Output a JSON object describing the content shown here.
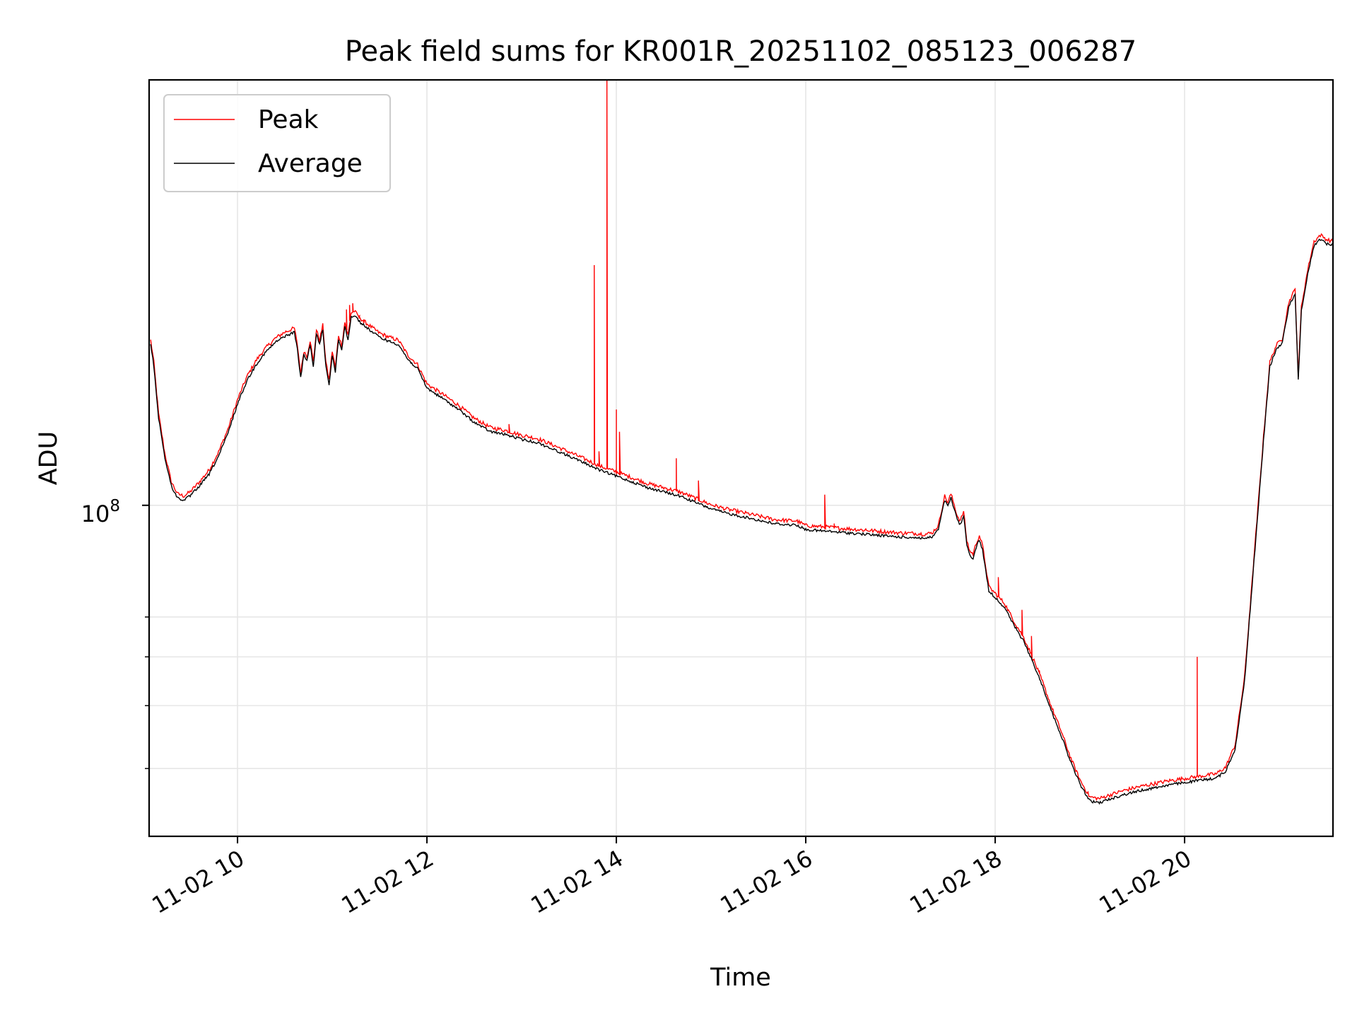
{
  "chart_data": {
    "type": "line",
    "title": "Peak field sums for KR001R_20251102_085123_006287",
    "xlabel": "Time",
    "ylabel": "ADU",
    "yscale": "log",
    "grid": true,
    "legend_position": "top-left",
    "xlim": [
      "2025-11-02 09:04",
      "2025-11-02 21:34"
    ],
    "ylim": [
      22000000,
      700000000
    ],
    "x_ticks": [
      "11-02 10",
      "11-02 12",
      "11-02 14",
      "11-02 16",
      "11-02 18",
      "11-02 20"
    ],
    "y_tick_label": {
      "base": "10",
      "exp": "8"
    },
    "colors": {
      "peak": "#ff0000",
      "average": "#000000",
      "grid": "#e6e6e6"
    },
    "series": [
      {
        "name": "Average",
        "color": "#000000",
        "points": [
          [
            "09:05",
            210000000
          ],
          [
            "09:07",
            190000000
          ],
          [
            "09:10",
            150000000
          ],
          [
            "09:14",
            125000000
          ],
          [
            "09:18",
            110000000
          ],
          [
            "09:22",
            104000000
          ],
          [
            "09:26",
            103000000
          ],
          [
            "09:30",
            105000000
          ],
          [
            "09:36",
            110000000
          ],
          [
            "09:42",
            116000000
          ],
          [
            "09:48",
            126000000
          ],
          [
            "09:54",
            140000000
          ],
          [
            "10:00",
            160000000
          ],
          [
            "10:06",
            178000000
          ],
          [
            "10:12",
            192000000
          ],
          [
            "10:18",
            203000000
          ],
          [
            "10:24",
            212000000
          ],
          [
            "10:30",
            218000000
          ],
          [
            "10:36",
            222000000
          ],
          [
            "10:38",
            205000000
          ],
          [
            "10:40",
            180000000
          ],
          [
            "10:42",
            200000000
          ],
          [
            "10:44",
            195000000
          ],
          [
            "10:46",
            210000000
          ],
          [
            "10:48",
            190000000
          ],
          [
            "10:50",
            220000000
          ],
          [
            "10:52",
            210000000
          ],
          [
            "10:54",
            225000000
          ],
          [
            "10:56",
            190000000
          ],
          [
            "10:58",
            175000000
          ],
          [
            "11:00",
            200000000
          ],
          [
            "11:02",
            185000000
          ],
          [
            "11:04",
            215000000
          ],
          [
            "11:06",
            205000000
          ],
          [
            "11:08",
            228000000
          ],
          [
            "11:10",
            215000000
          ],
          [
            "11:12",
            238000000
          ],
          [
            "11:14",
            240000000
          ],
          [
            "11:18",
            232000000
          ],
          [
            "11:24",
            224000000
          ],
          [
            "11:30",
            217000000
          ],
          [
            "11:36",
            213000000
          ],
          [
            "11:42",
            210000000
          ],
          [
            "11:48",
            196000000
          ],
          [
            "11:54",
            188000000
          ],
          [
            "12:00",
            172000000
          ],
          [
            "12:10",
            164000000
          ],
          [
            "12:20",
            156000000
          ],
          [
            "12:30",
            147000000
          ],
          [
            "12:40",
            141000000
          ],
          [
            "12:50",
            139000000
          ],
          [
            "13:00",
            136000000
          ],
          [
            "13:10",
            134000000
          ],
          [
            "13:20",
            130000000
          ],
          [
            "13:30",
            126000000
          ],
          [
            "13:40",
            122000000
          ],
          [
            "13:50",
            118000000
          ],
          [
            "14:00",
            115000000
          ],
          [
            "14:10",
            112000000
          ],
          [
            "14:20",
            109000000
          ],
          [
            "14:30",
            107000000
          ],
          [
            "14:40",
            105000000
          ],
          [
            "14:50",
            102000000
          ],
          [
            "15:00",
            99000000
          ],
          [
            "15:10",
            97000000
          ],
          [
            "15:20",
            95500000
          ],
          [
            "15:30",
            94000000
          ],
          [
            "15:40",
            92500000
          ],
          [
            "15:50",
            92000000
          ],
          [
            "15:54",
            92000000
          ],
          [
            "16:00",
            90000000
          ],
          [
            "16:10",
            89500000
          ],
          [
            "16:20",
            89000000
          ],
          [
            "16:30",
            88500000
          ],
          [
            "16:40",
            88000000
          ],
          [
            "16:50",
            87500000
          ],
          [
            "17:00",
            87000000
          ],
          [
            "17:10",
            86800000
          ],
          [
            "17:16",
            86500000
          ],
          [
            "17:20",
            87000000
          ],
          [
            "17:24",
            90000000
          ],
          [
            "17:28",
            103000000
          ],
          [
            "17:30",
            100000000
          ],
          [
            "17:32",
            104000000
          ],
          [
            "17:34",
            99000000
          ],
          [
            "17:36",
            94000000
          ],
          [
            "17:38",
            92000000
          ],
          [
            "17:40",
            96000000
          ],
          [
            "17:42",
            84000000
          ],
          [
            "17:44",
            80000000
          ],
          [
            "17:46",
            79000000
          ],
          [
            "17:48",
            83000000
          ],
          [
            "17:50",
            86000000
          ],
          [
            "17:52",
            82000000
          ],
          [
            "17:56",
            68000000
          ],
          [
            "18:00",
            66000000
          ],
          [
            "18:06",
            63000000
          ],
          [
            "18:12",
            58000000
          ],
          [
            "18:18",
            54000000
          ],
          [
            "18:24",
            49000000
          ],
          [
            "18:30",
            44000000
          ],
          [
            "18:36",
            39000000
          ],
          [
            "18:42",
            35000000
          ],
          [
            "18:48",
            31000000
          ],
          [
            "18:54",
            28000000
          ],
          [
            "19:00",
            26000000
          ],
          [
            "19:06",
            25800000
          ],
          [
            "19:12",
            26200000
          ],
          [
            "19:20",
            26700000
          ],
          [
            "19:30",
            27200000
          ],
          [
            "19:40",
            27600000
          ],
          [
            "19:50",
            28000000
          ],
          [
            "20:00",
            28300000
          ],
          [
            "20:10",
            28600000
          ],
          [
            "20:20",
            28900000
          ],
          [
            "20:26",
            29800000
          ],
          [
            "20:32",
            33000000
          ],
          [
            "20:38",
            45000000
          ],
          [
            "20:44",
            78000000
          ],
          [
            "20:50",
            135000000
          ],
          [
            "20:54",
            190000000
          ],
          [
            "20:58",
            205000000
          ],
          [
            "21:02",
            212000000
          ],
          [
            "21:06",
            250000000
          ],
          [
            "21:10",
            265000000
          ],
          [
            "21:12",
            178000000
          ],
          [
            "21:14",
            245000000
          ],
          [
            "21:18",
            290000000
          ],
          [
            "21:22",
            330000000
          ],
          [
            "21:26",
            340000000
          ],
          [
            "21:30",
            333000000
          ],
          [
            "21:34",
            330000000
          ]
        ]
      },
      {
        "name": "Peak",
        "color": "#ff0000",
        "base": "follows Average",
        "spikes": [
          [
            "11:09",
            245000000
          ],
          [
            "11:11",
            250000000
          ],
          [
            "11:13",
            252000000
          ],
          [
            "11:17",
            235000000
          ],
          [
            "11:20",
            230000000
          ],
          [
            "12:52",
            145000000
          ],
          [
            "13:03",
            138000000
          ],
          [
            "13:46",
            300000000
          ],
          [
            "13:49",
            128000000
          ],
          [
            "13:54",
            700000000
          ],
          [
            "14:00",
            155000000
          ],
          [
            "14:02",
            140000000
          ],
          [
            "14:38",
            124000000
          ],
          [
            "14:52",
            112000000
          ],
          [
            "16:12",
            105000000
          ],
          [
            "16:18",
            92000000
          ],
          [
            "16:38",
            90000000
          ],
          [
            "18:02",
            72000000
          ],
          [
            "18:17",
            62000000
          ],
          [
            "18:23",
            55000000
          ],
          [
            "18:28",
            47000000
          ],
          [
            "20:08",
            50000000
          ]
        ]
      }
    ]
  }
}
